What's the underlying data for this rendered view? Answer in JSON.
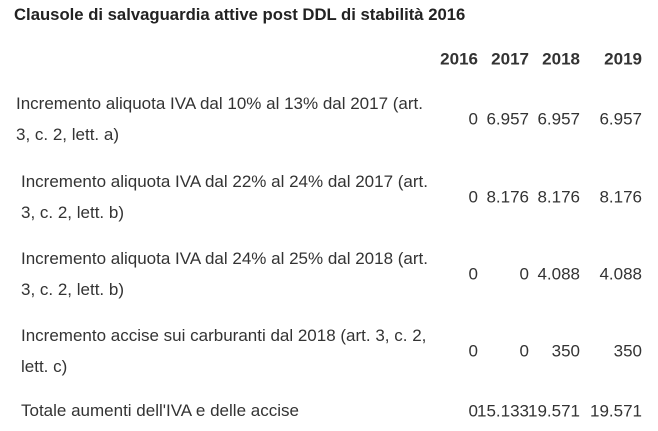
{
  "title": "Clausole di salvaguardia attive post DDL di stabilità 2016",
  "table": {
    "years": [
      "2016",
      "2017",
      "2018",
      "2019"
    ],
    "rows": [
      {
        "label": "Incremento aliquota IVA dal 10% al 13% dal 2017 (art. 3, c. 2, lett. a)",
        "values": [
          "0",
          "6.957",
          "6.957",
          "6.957"
        ]
      },
      {
        "label": "Incremento aliquota IVA dal 22% al 24% dal 2017 (art. 3, c. 2, lett. b)",
        "values": [
          "0",
          "8.176",
          "8.176",
          "8.176"
        ]
      },
      {
        "label": "Incremento aliquota IVA dal 24% al 25% dal 2018 (art. 3, c. 2, lett. b)",
        "values": [
          "0",
          "0",
          "4.088",
          "4.088"
        ]
      },
      {
        "label": "Incremento accise sui carburanti dal 2018 (art. 3, c. 2, lett. c)",
        "values": [
          "0",
          "0",
          "350",
          "350"
        ]
      },
      {
        "label": "Totale aumenti dell'IVA e delle accise",
        "values": [
          "0",
          "15.133",
          "19.571",
          "19.571"
        ]
      }
    ]
  }
}
